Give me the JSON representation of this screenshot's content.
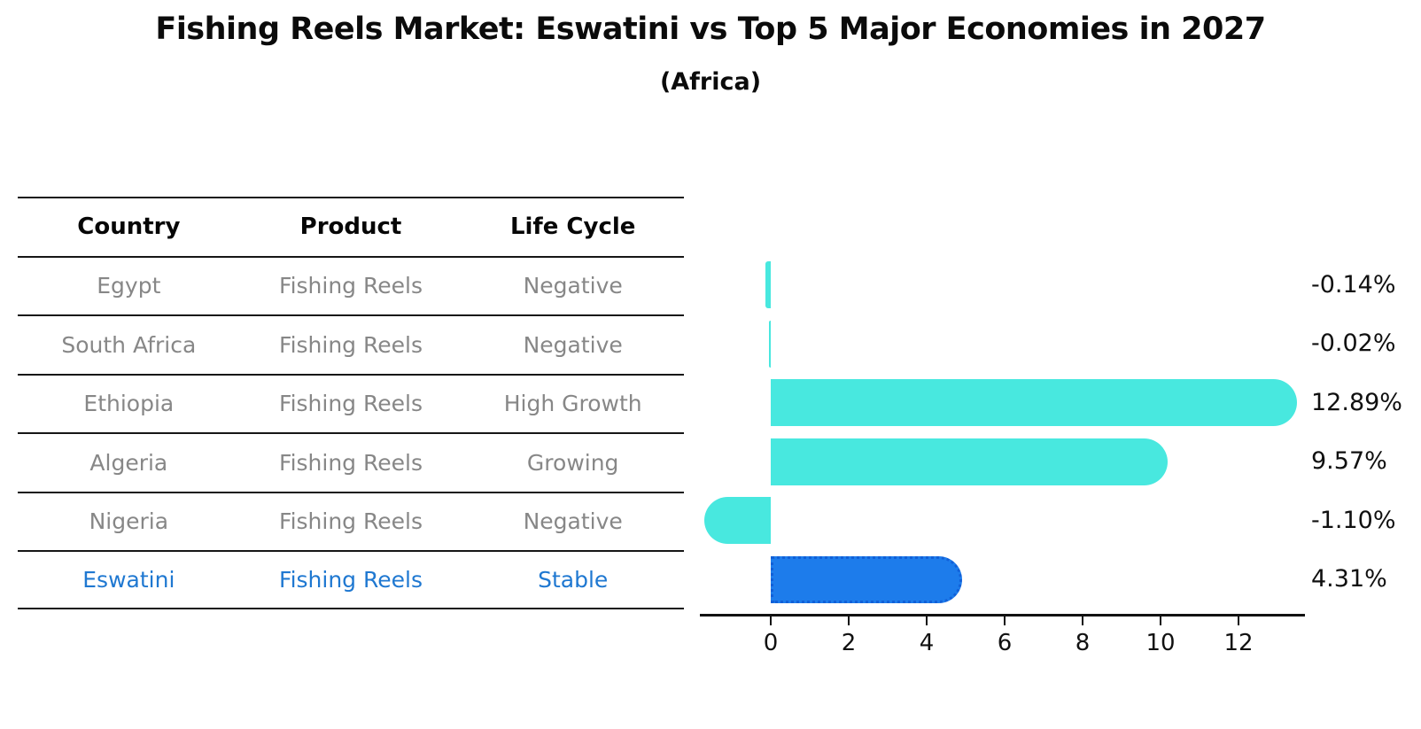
{
  "title": "Fishing Reels Market: Eswatini vs Top 5 Major Economies in 2027",
  "subtitle": "(Africa)",
  "table": {
    "headers": [
      "Country",
      "Product",
      "Life Cycle"
    ],
    "rows": [
      {
        "country": "Egypt",
        "product": "Fishing Reels",
        "life_cycle": "Negative",
        "highlight": false
      },
      {
        "country": "South Africa",
        "product": "Fishing Reels",
        "life_cycle": "Negative",
        "highlight": false
      },
      {
        "country": "Ethiopia",
        "product": "Fishing Reels",
        "life_cycle": "High Growth",
        "highlight": false
      },
      {
        "country": "Algeria",
        "product": "Fishing Reels",
        "life_cycle": "Growing",
        "highlight": false
      },
      {
        "country": "Nigeria",
        "product": "Fishing Reels",
        "life_cycle": "Negative",
        "highlight": false
      },
      {
        "country": "Eswatini",
        "product": "Fishing Reels",
        "life_cycle": "Stable",
        "highlight": true
      }
    ]
  },
  "chart_data": {
    "type": "bar",
    "orientation": "horizontal",
    "categories": [
      "Egypt",
      "South Africa",
      "Ethiopia",
      "Algeria",
      "Nigeria",
      "Eswatini"
    ],
    "values": [
      -0.14,
      -0.02,
      12.89,
      9.57,
      -1.1,
      4.31
    ],
    "value_labels": [
      "-0.14%",
      "-0.02%",
      "12.89%",
      "9.57%",
      "-1.10%",
      "4.31%"
    ],
    "xticks": [
      0,
      2,
      4,
      6,
      8,
      10,
      12
    ],
    "xlim": [
      -1.85,
      13.7
    ],
    "grid": false,
    "bar_color": "#48e8df",
    "highlight_index": 5,
    "highlight_color": "#1d7ceb",
    "highlight_border_color": "#1160d8",
    "value_label_color": "#101010",
    "axis_color": "#111111"
  },
  "colors": {
    "background": "#ffffff",
    "header_text": "#060606",
    "row_text": "#878787",
    "highlight_text": "#1f78d1",
    "table_line": "#161616"
  }
}
